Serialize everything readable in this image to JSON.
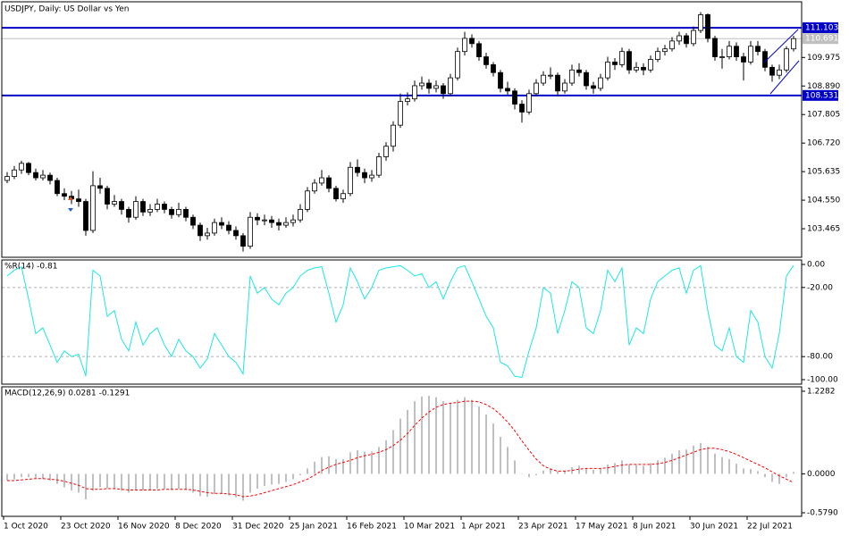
{
  "chart_data": [
    {
      "type": "candlestick",
      "title": "USDJPY, Daily:  US Dollar vs Yen",
      "categories": [
        "1 Oct 2020",
        null,
        null,
        null,
        null,
        null,
        null,
        null,
        "23 Oct 2020",
        null,
        null,
        null,
        null,
        null,
        null,
        null,
        "16 Nov 2020",
        null,
        null,
        null,
        null,
        null,
        null,
        null,
        "8 Dec 2020",
        null,
        null,
        null,
        null,
        null,
        null,
        null,
        "31 Dec 2020",
        null,
        null,
        null,
        null,
        null,
        null,
        null,
        "25 Jan 2021",
        null,
        null,
        null,
        null,
        null,
        null,
        null,
        "16 Feb 2021",
        null,
        null,
        null,
        null,
        null,
        null,
        null,
        "10 Mar 2021",
        null,
        null,
        null,
        null,
        null,
        null,
        null,
        "1 Apr 2021",
        null,
        null,
        null,
        null,
        null,
        null,
        null,
        "23 Apr 2021",
        null,
        null,
        null,
        null,
        null,
        null,
        null,
        "17 May 2021",
        null,
        null,
        null,
        null,
        null,
        null,
        null,
        "8 Jun 2021",
        null,
        null,
        null,
        null,
        null,
        null,
        null,
        "30 Jun 2021",
        null,
        null,
        null,
        null,
        null,
        null,
        null,
        "22 Jul 2021",
        null,
        null,
        null,
        null,
        null,
        null
      ],
      "ohlc": [
        [
          105.3,
          105.62,
          105.2,
          105.45
        ],
        [
          105.45,
          105.85,
          105.35,
          105.7
        ],
        [
          105.7,
          106.05,
          105.55,
          105.95
        ],
        [
          105.95,
          106.0,
          105.5,
          105.6
        ],
        [
          105.6,
          105.75,
          105.3,
          105.4
        ],
        [
          105.4,
          105.7,
          105.3,
          105.5
        ],
        [
          105.5,
          105.6,
          105.15,
          105.3
        ],
        [
          105.3,
          105.4,
          104.7,
          104.8
        ],
        [
          104.8,
          105.0,
          104.55,
          104.7
        ],
        [
          104.7,
          104.9,
          104.4,
          104.6
        ],
        [
          104.6,
          104.95,
          104.3,
          104.5
        ],
        [
          104.5,
          104.6,
          103.2,
          103.4
        ],
        [
          103.4,
          105.65,
          103.3,
          105.1
        ],
        [
          105.1,
          105.4,
          104.8,
          105.0
        ],
        [
          105.0,
          105.1,
          104.2,
          104.4
        ],
        [
          104.4,
          104.75,
          104.3,
          104.5
        ],
        [
          104.5,
          104.6,
          104.0,
          104.2
        ],
        [
          104.2,
          104.3,
          103.7,
          103.9
        ],
        [
          103.9,
          104.7,
          103.8,
          104.5
        ],
        [
          104.5,
          104.6,
          103.95,
          104.1
        ],
        [
          104.1,
          104.4,
          103.95,
          104.2
        ],
        [
          104.2,
          104.6,
          104.1,
          104.4
        ],
        [
          104.4,
          104.5,
          104.05,
          104.2
        ],
        [
          104.2,
          104.3,
          103.85,
          104.0
        ],
        [
          104.0,
          104.45,
          103.9,
          104.2
        ],
        [
          104.2,
          104.3,
          103.75,
          103.9
        ],
        [
          103.9,
          104.0,
          103.45,
          103.6
        ],
        [
          103.6,
          103.7,
          103.0,
          103.2
        ],
        [
          103.2,
          103.5,
          103.05,
          103.3
        ],
        [
          103.3,
          103.85,
          103.2,
          103.7
        ],
        [
          103.7,
          103.9,
          103.45,
          103.6
        ],
        [
          103.6,
          103.75,
          103.25,
          103.4
        ],
        [
          103.4,
          103.55,
          103.05,
          103.2
        ],
        [
          103.2,
          103.3,
          102.6,
          102.8
        ],
        [
          102.8,
          104.1,
          102.7,
          103.9
        ],
        [
          103.9,
          104.05,
          103.6,
          103.8
        ],
        [
          103.8,
          104.0,
          103.6,
          103.8
        ],
        [
          103.8,
          103.95,
          103.5,
          103.7
        ],
        [
          103.7,
          103.85,
          103.4,
          103.6
        ],
        [
          103.6,
          103.9,
          103.5,
          103.7
        ],
        [
          103.7,
          104.0,
          103.55,
          103.8
        ],
        [
          103.8,
          104.4,
          103.7,
          104.2
        ],
        [
          104.2,
          105.05,
          104.1,
          104.9
        ],
        [
          104.9,
          105.35,
          104.8,
          105.2
        ],
        [
          105.2,
          105.7,
          105.1,
          105.4
        ],
        [
          105.4,
          105.5,
          104.85,
          105.0
        ],
        [
          105.0,
          105.1,
          104.5,
          104.6
        ],
        [
          104.6,
          104.95,
          104.45,
          104.8
        ],
        [
          104.8,
          106.0,
          104.7,
          105.8
        ],
        [
          105.8,
          106.1,
          105.45,
          105.6
        ],
        [
          105.6,
          105.75,
          105.2,
          105.4
        ],
        [
          105.4,
          105.7,
          105.25,
          105.5
        ],
        [
          105.5,
          106.35,
          105.4,
          106.2
        ],
        [
          106.2,
          106.75,
          106.05,
          106.6
        ],
        [
          106.6,
          107.55,
          106.4,
          107.4
        ],
        [
          107.4,
          108.6,
          107.3,
          108.3
        ],
        [
          108.3,
          108.65,
          108.15,
          108.4
        ],
        [
          108.4,
          109.1,
          108.3,
          108.9
        ],
        [
          108.9,
          109.25,
          108.75,
          109.0
        ],
        [
          109.0,
          109.15,
          108.6,
          108.8
        ],
        [
          108.8,
          109.1,
          108.65,
          108.9
        ],
        [
          108.9,
          109.0,
          108.4,
          108.6
        ],
        [
          108.6,
          109.35,
          108.5,
          109.2
        ],
        [
          109.2,
          110.35,
          109.1,
          110.2
        ],
        [
          110.2,
          110.95,
          110.05,
          110.7
        ],
        [
          110.7,
          110.85,
          110.35,
          110.5
        ],
        [
          110.5,
          110.6,
          109.85,
          110.0
        ],
        [
          110.0,
          110.15,
          109.55,
          109.7
        ],
        [
          109.7,
          109.8,
          109.25,
          109.4
        ],
        [
          109.4,
          109.5,
          108.65,
          108.8
        ],
        [
          108.8,
          109.05,
          108.55,
          108.7
        ],
        [
          108.7,
          108.8,
          108.0,
          108.2
        ],
        [
          108.2,
          108.35,
          107.5,
          107.9
        ],
        [
          107.9,
          108.75,
          107.8,
          108.6
        ],
        [
          108.6,
          109.15,
          108.5,
          109.0
        ],
        [
          109.0,
          109.45,
          108.9,
          109.3
        ],
        [
          109.3,
          109.6,
          109.15,
          109.3
        ],
        [
          109.3,
          109.4,
          108.5,
          108.7
        ],
        [
          108.7,
          109.15,
          108.6,
          109.0
        ],
        [
          109.0,
          109.7,
          108.9,
          109.5
        ],
        [
          109.5,
          109.75,
          109.25,
          109.4
        ],
        [
          109.4,
          109.5,
          108.75,
          108.9
        ],
        [
          108.9,
          109.05,
          108.6,
          108.8
        ],
        [
          108.8,
          109.35,
          108.7,
          109.2
        ],
        [
          109.2,
          110.0,
          109.1,
          109.8
        ],
        [
          109.8,
          109.95,
          109.5,
          109.7
        ],
        [
          109.7,
          110.35,
          109.6,
          110.2
        ],
        [
          110.2,
          110.3,
          109.35,
          109.5
        ],
        [
          109.5,
          109.8,
          109.4,
          109.6
        ],
        [
          109.6,
          109.75,
          109.3,
          109.5
        ],
        [
          109.5,
          110.05,
          109.4,
          109.9
        ],
        [
          109.9,
          110.35,
          109.8,
          110.2
        ],
        [
          110.2,
          110.45,
          110.05,
          110.3
        ],
        [
          110.3,
          110.75,
          110.2,
          110.6
        ],
        [
          110.6,
          110.95,
          110.45,
          110.8
        ],
        [
          110.8,
          110.9,
          110.35,
          110.5
        ],
        [
          110.5,
          111.15,
          110.4,
          111.0
        ],
        [
          111.0,
          111.7,
          110.9,
          111.6
        ],
        [
          111.6,
          111.65,
          110.55,
          110.7
        ],
        [
          110.7,
          110.8,
          109.85,
          110.0
        ],
        [
          110.0,
          110.3,
          109.55,
          110.0
        ],
        [
          110.0,
          110.6,
          109.9,
          110.4
        ],
        [
          110.4,
          110.55,
          109.85,
          110.0
        ],
        [
          110.0,
          110.15,
          109.1,
          109.8
        ],
        [
          109.8,
          110.6,
          109.7,
          110.4
        ],
        [
          110.4,
          110.6,
          110.05,
          110.2
        ],
        [
          110.2,
          110.3,
          109.45,
          109.6
        ],
        [
          109.6,
          109.7,
          109.05,
          109.3
        ],
        [
          109.3,
          109.7,
          109.15,
          109.5
        ],
        [
          109.5,
          110.4,
          109.4,
          110.3
        ],
        [
          110.3,
          110.8,
          110.2,
          110.69
        ]
      ],
      "up_color": "#ffffff",
      "down_color": "#000000",
      "outline_color": "#000000",
      "ylim": [
        102.38,
        112.09
      ],
      "yticks": [
        109.975,
        {
          "value": 108.89,
          "label": "108.890"
        },
        107.805,
        {
          "value": 106.72,
          "label": "106.720"
        },
        105.635,
        {
          "value": 104.55,
          "label": "104.550"
        },
        103.465
      ],
      "hlines": [
        {
          "value": 111.103,
          "label": "111.103",
          "color": "#0000c8"
        },
        {
          "value": 110.691,
          "label": "110.691",
          "color": "#c0c0c0"
        },
        {
          "value": 108.531,
          "label": "108.531",
          "color": "#0000c8"
        }
      ]
    },
    {
      "type": "line",
      "title": "%R(14) -0.81",
      "color": "#1ee6e6",
      "values": [
        -10,
        -5,
        -2,
        -30,
        -60,
        -55,
        -70,
        -85,
        -75,
        -80,
        -78,
        -97,
        -5,
        -10,
        -45,
        -40,
        -65,
        -75,
        -50,
        -70,
        -60,
        -55,
        -70,
        -80,
        -65,
        -75,
        -80,
        -90,
        -82,
        -60,
        -70,
        -80,
        -85,
        -95,
        -10,
        -25,
        -20,
        -30,
        -35,
        -25,
        -20,
        -10,
        -5,
        -3,
        -2,
        -25,
        -50,
        -35,
        -3,
        -15,
        -30,
        -20,
        -5,
        -3,
        -2,
        -1,
        -5,
        -10,
        -8,
        -20,
        -15,
        -30,
        -15,
        -3,
        -1,
        -15,
        -30,
        -45,
        -55,
        -85,
        -88,
        -97,
        -98,
        -75,
        -55,
        -20,
        -25,
        -60,
        -40,
        -15,
        -20,
        -55,
        -60,
        -40,
        -5,
        -15,
        -3,
        -70,
        -55,
        -60,
        -30,
        -15,
        -10,
        -5,
        -3,
        -25,
        -5,
        -1,
        -40,
        -70,
        -75,
        -55,
        -80,
        -85,
        -40,
        -50,
        -80,
        -90,
        -60,
        -10,
        -0.81
      ],
      "ylim": [
        -103.9,
        3.9
      ],
      "yticks": [
        {
          "value": 0,
          "label": "0.00"
        },
        {
          "value": -20,
          "label": "-20.00"
        },
        {
          "value": -80,
          "label": "-80.00"
        },
        {
          "value": -100,
          "label": "-100.00"
        }
      ],
      "grid_levels": [
        -20,
        -80
      ]
    },
    {
      "type": "macd",
      "title": "MACD(12,26,9) 0.0281 -0.1291",
      "histogram": {
        "color": "#c0c0c0",
        "values": [
          -0.1,
          -0.08,
          -0.05,
          -0.05,
          -0.06,
          -0.08,
          -0.1,
          -0.15,
          -0.2,
          -0.25,
          -0.28,
          -0.38,
          -0.25,
          -0.2,
          -0.22,
          -0.22,
          -0.25,
          -0.28,
          -0.25,
          -0.25,
          -0.24,
          -0.22,
          -0.22,
          -0.24,
          -0.22,
          -0.24,
          -0.28,
          -0.33,
          -0.34,
          -0.3,
          -0.3,
          -0.32,
          -0.35,
          -0.4,
          -0.28,
          -0.22,
          -0.18,
          -0.16,
          -0.15,
          -0.12,
          -0.08,
          -0.02,
          0.08,
          0.18,
          0.25,
          0.26,
          0.22,
          0.22,
          0.32,
          0.35,
          0.33,
          0.33,
          0.4,
          0.5,
          0.65,
          0.82,
          0.95,
          1.08,
          1.15,
          1.16,
          1.14,
          1.08,
          1.05,
          1.1,
          1.14,
          1.1,
          1.0,
          0.88,
          0.75,
          0.55,
          0.4,
          0.2,
          0.0,
          -0.05,
          -0.02,
          0.05,
          0.08,
          0.04,
          0.05,
          0.1,
          0.12,
          0.08,
          0.06,
          0.08,
          0.14,
          0.16,
          0.2,
          0.14,
          0.13,
          0.12,
          0.16,
          0.2,
          0.24,
          0.3,
          0.35,
          0.36,
          0.42,
          0.46,
          0.4,
          0.3,
          0.25,
          0.22,
          0.15,
          0.08,
          0.07,
          0.04,
          -0.05,
          -0.12,
          -0.15,
          -0.05,
          0.0281
        ]
      },
      "signal": {
        "color": "#ff0000",
        "values": [
          -0.1,
          -0.1,
          -0.09,
          -0.08,
          -0.07,
          -0.07,
          -0.08,
          -0.09,
          -0.11,
          -0.14,
          -0.17,
          -0.22,
          -0.23,
          -0.23,
          -0.22,
          -0.22,
          -0.23,
          -0.24,
          -0.24,
          -0.24,
          -0.24,
          -0.24,
          -0.23,
          -0.23,
          -0.23,
          -0.23,
          -0.24,
          -0.26,
          -0.28,
          -0.29,
          -0.29,
          -0.3,
          -0.31,
          -0.34,
          -0.33,
          -0.31,
          -0.28,
          -0.25,
          -0.22,
          -0.19,
          -0.16,
          -0.12,
          -0.08,
          -0.02,
          0.05,
          0.1,
          0.14,
          0.17,
          0.2,
          0.24,
          0.27,
          0.29,
          0.32,
          0.36,
          0.42,
          0.5,
          0.6,
          0.72,
          0.83,
          0.92,
          0.99,
          1.03,
          1.05,
          1.06,
          1.08,
          1.08,
          1.07,
          1.03,
          0.97,
          0.88,
          0.77,
          0.64,
          0.49,
          0.35,
          0.22,
          0.12,
          0.07,
          0.04,
          0.04,
          0.05,
          0.07,
          0.08,
          0.08,
          0.08,
          0.09,
          0.11,
          0.13,
          0.14,
          0.14,
          0.14,
          0.14,
          0.15,
          0.17,
          0.2,
          0.24,
          0.28,
          0.32,
          0.36,
          0.38,
          0.38,
          0.36,
          0.33,
          0.29,
          0.24,
          0.19,
          0.14,
          0.09,
          0.03,
          -0.03,
          -0.08,
          -0.1291
        ]
      },
      "ylim": [
        -0.632,
        1.294
      ],
      "yticks": [
        1.2282,
        {
          "value": 0,
          "label": "0.0000"
        },
        {
          "value": -0.579,
          "label": "-0.5790"
        }
      ]
    }
  ]
}
